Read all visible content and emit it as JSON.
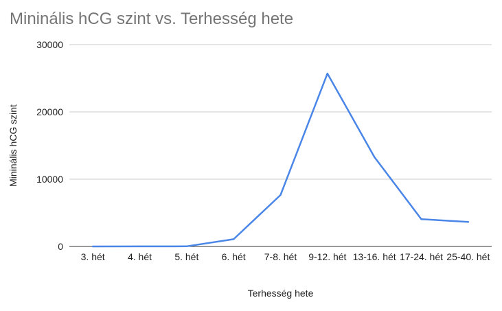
{
  "title": "Mininális hCG szint vs. Terhesség hete",
  "colors": {
    "line": "#4a86e8",
    "grid": "#cccccc",
    "axis": "#333333",
    "title": "#757575"
  },
  "chart_data": {
    "type": "line",
    "title": "Mininális hCG szint vs. Terhesség hete",
    "xlabel": "Terhesség hete",
    "ylabel": "Mininális hCG szint",
    "categories": [
      "3. hét",
      "4. hét",
      "5. hét",
      "6. hét",
      "7-8. hét",
      "9-12. hét",
      "13-16. hét",
      "17-24. hét",
      "25-40. hét"
    ],
    "series": [
      {
        "values": [
          5,
          10,
          18,
          1080,
          7650,
          25700,
          13300,
          4060,
          3640
        ]
      }
    ],
    "ylim": [
      0,
      30000
    ],
    "yticks": [
      0,
      10000,
      20000,
      30000
    ],
    "grid": true,
    "legend": "none"
  }
}
